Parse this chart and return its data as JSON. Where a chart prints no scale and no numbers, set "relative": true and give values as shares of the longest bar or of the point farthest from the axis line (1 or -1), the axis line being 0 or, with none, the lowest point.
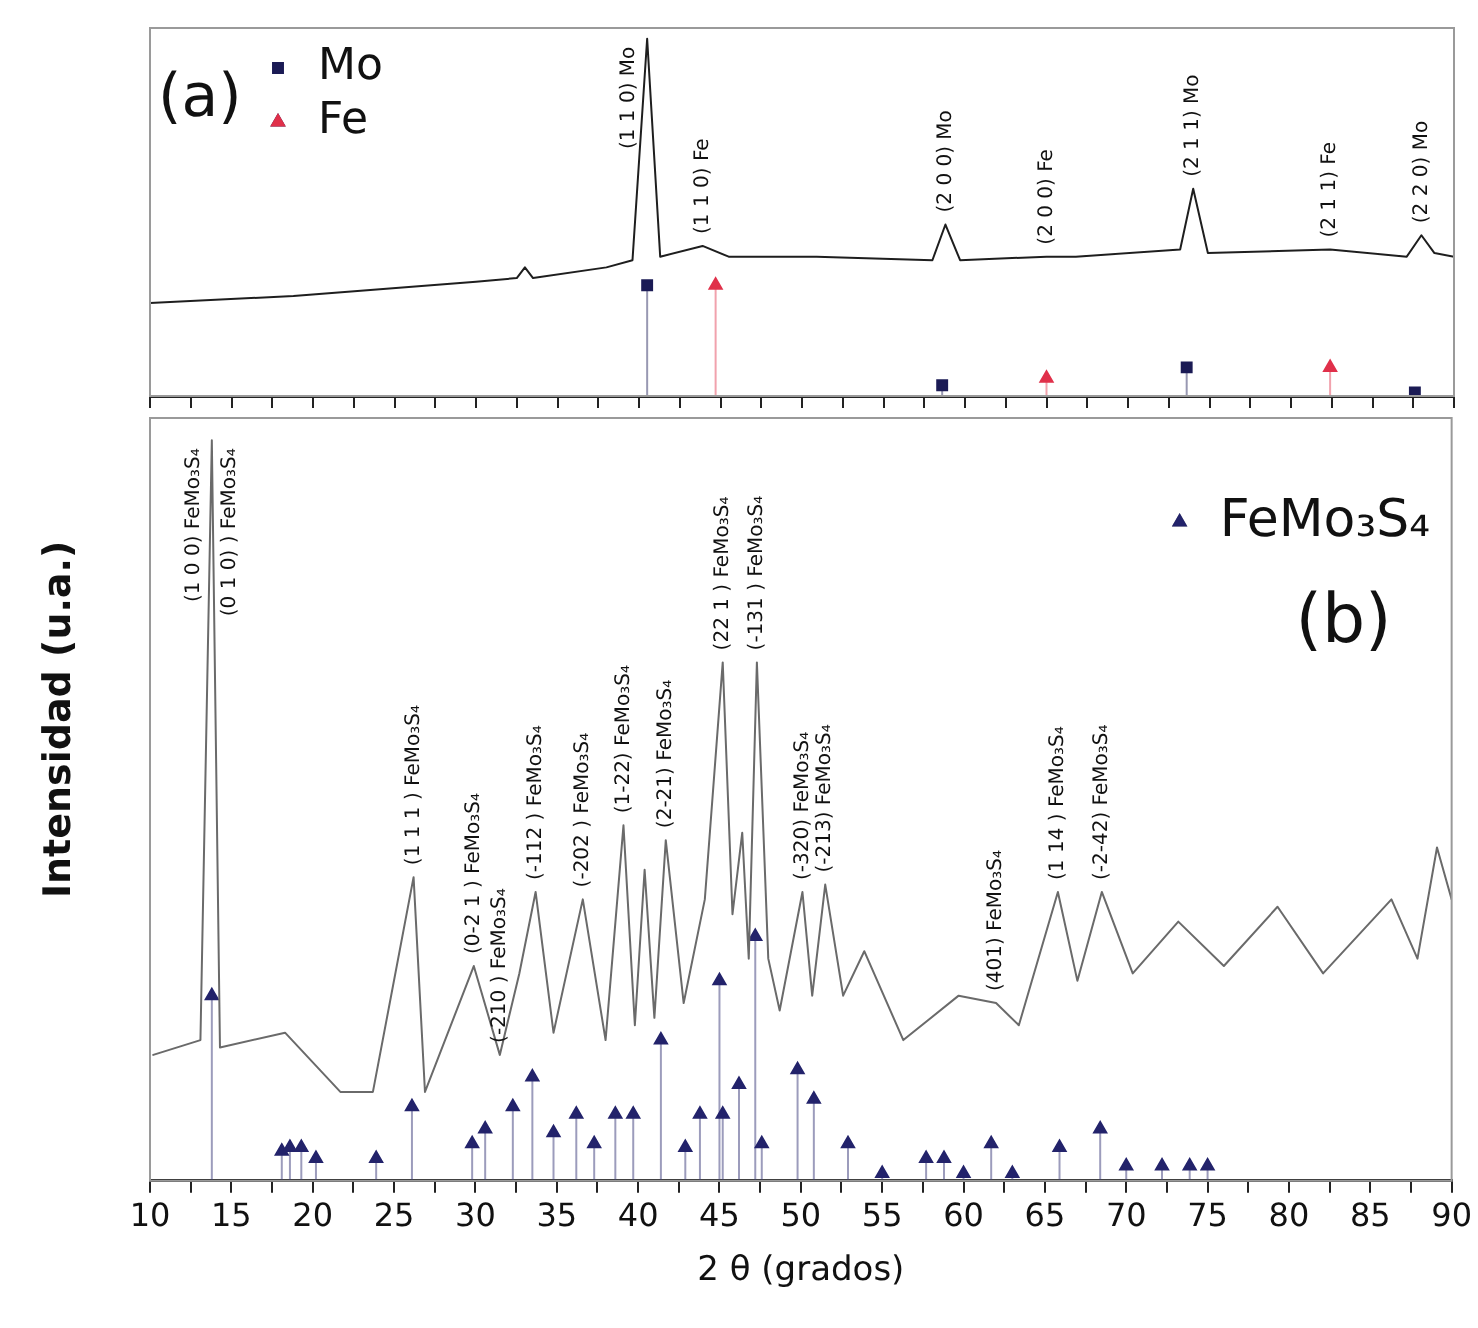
{
  "chart_data": [
    {
      "type": "line",
      "relative": true,
      "xlim": [
        10,
        90
      ],
      "tick_labels": false,
      "legend": "top left",
      "xticks": [
        {
          "value": 10,
          "label": null
        },
        {
          "value": 12.5,
          "label": null
        },
        {
          "value": 15,
          "label": null
        },
        {
          "value": 17.5,
          "label": null
        },
        {
          "value": 20,
          "label": null
        },
        {
          "value": 22.5,
          "label": null
        },
        {
          "value": 25,
          "label": null
        },
        {
          "value": 27.5,
          "label": null
        },
        {
          "value": 30,
          "label": null
        },
        {
          "value": 32.5,
          "label": null
        },
        {
          "value": 35,
          "label": null
        },
        {
          "value": 37.5,
          "label": null
        },
        {
          "value": 40,
          "label": null
        },
        {
          "value": 42.5,
          "label": null
        },
        {
          "value": 45,
          "label": null
        },
        {
          "value": 47.5,
          "label": null
        },
        {
          "value": 50,
          "label": null
        },
        {
          "value": 52.5,
          "label": null
        },
        {
          "value": 55,
          "label": null
        },
        {
          "value": 57.5,
          "label": null
        },
        {
          "value": 60,
          "label": null
        },
        {
          "value": 62.5,
          "label": null
        },
        {
          "value": 65,
          "label": null
        },
        {
          "value": 67.5,
          "label": null
        },
        {
          "value": 70,
          "label": null
        },
        {
          "value": 72.5,
          "label": null
        },
        {
          "value": 75,
          "label": null
        },
        {
          "value": 77.5,
          "label": null
        },
        {
          "value": 80,
          "label": null
        },
        {
          "value": 82.5,
          "label": null
        },
        {
          "value": 85,
          "label": null
        },
        {
          "value": 87.5,
          "label": null
        },
        {
          "value": 90,
          "label": null
        }
      ],
      "annotations": [
        "(a)",
        {
          "text": "(1 1 0) Mo",
          "x": 40.5,
          "y": 1
        },
        {
          "text": "(1 1 0) Fe",
          "x": 43.9,
          "y": 0.42
        },
        {
          "text": "(2 0 0) Mo",
          "x": 58.8,
          "y": 0.48
        },
        {
          "text": "(2 0 0) Fe",
          "x": 65,
          "y": 0.39
        },
        {
          "text": "(2 1 1) Mo",
          "x": 74,
          "y": 0.58
        },
        {
          "text": "(2 1 1) Fe",
          "x": 82.4,
          "y": 0.41
        },
        {
          "text": "(2 2 0) Mo",
          "x": 88,
          "y": 0.45
        }
      ],
      "series": [
        {
          "type": "line",
          "color": "#1e1e1e",
          "x": [
            10,
            18.8,
            30,
            32.5,
            33,
            33.5,
            38,
            39.6,
            40.5,
            41.3,
            43.9,
            45.5,
            50.9,
            58,
            58.8,
            59.7,
            65,
            66.8,
            73.2,
            74,
            74.9,
            82.4,
            87.1,
            88,
            88.8,
            90
          ],
          "values": [
            0.26,
            0.28,
            0.32,
            0.33,
            0.36,
            0.33,
            0.36,
            0.38,
            1,
            0.39,
            0.42,
            0.39,
            0.39,
            0.38,
            0.48,
            0.38,
            0.39,
            0.39,
            0.41,
            0.58,
            0.4,
            0.41,
            0.39,
            0.45,
            0.4,
            0.39
          ]
        },
        {
          "type": "lollipop",
          "name": "Mo",
          "color": "#1b1b55",
          "marker": "square",
          "x": [
            40.5,
            58.6,
            73.6,
            87.6
          ],
          "values": [
            0.31,
            0.03,
            0.08,
            0.01
          ]
        },
        {
          "type": "lollipop",
          "name": "Fe",
          "color": "#e0304a",
          "marker": "triangle",
          "x": [
            44.7,
            65,
            82.4
          ],
          "values": [
            0.31,
            0.05,
            0.08
          ]
        }
      ]
    },
    {
      "type": "line",
      "relative": true,
      "xlim": [
        10,
        90
      ],
      "tick_labels": "x",
      "legend": "top right",
      "xlabel": "2 θ (grados)",
      "ylabel": "Intensidad (u.a.)",
      "xticks": [
        10,
        {
          "value": 12.5,
          "label": null
        },
        15,
        {
          "value": 17.5,
          "label": null
        },
        20,
        {
          "value": 22.5,
          "label": null
        },
        25,
        {
          "value": 27.5,
          "label": null
        },
        30,
        {
          "value": 32.5,
          "label": null
        },
        35,
        {
          "value": 37.5,
          "label": null
        },
        40,
        {
          "value": 42.5,
          "label": null
        },
        45,
        {
          "value": 47.5,
          "label": null
        },
        50,
        {
          "value": 52.5,
          "label": null
        },
        55,
        {
          "value": 57.5,
          "label": null
        },
        60,
        {
          "value": 62.5,
          "label": null
        },
        65,
        {
          "value": 67.5,
          "label": null
        },
        70,
        {
          "value": 72.5,
          "label": null
        },
        75,
        {
          "value": 77.5,
          "label": null
        },
        80,
        {
          "value": 82.5,
          "label": null
        },
        85,
        {
          "value": 87.5,
          "label": null
        },
        90
      ],
      "annotations": [
        "(b)",
        {
          "text": "(1 0 0) FeMo₃S₄",
          "x": 13.8,
          "y": 1
        },
        {
          "text": "(0 1 0) ) FeMo₃S₄",
          "x": 13.8,
          "y": 1
        },
        {
          "text": "(1 1 1 ) FeMo₃S₄",
          "x": 26.2,
          "y": 0.41
        },
        {
          "text": "(0-2 1 ) FeMo₃S₄",
          "x": 29.9,
          "y": 0.29
        },
        {
          "text": "(-210 ) FeMo₃S₄",
          "x": 31.5,
          "y": 0.17
        },
        {
          "text": "(-112 ) FeMo₃S₄",
          "x": 33.7,
          "y": 0.39
        },
        {
          "text": "(-202 ) FeMo₃S₄",
          "x": 36.6,
          "y": 0.38
        },
        {
          "text": "(1-22) FeMo₃S₄",
          "x": 39.1,
          "y": 0.48
        },
        {
          "text": "(2-21) FeMo₃S₄",
          "x": 41.7,
          "y": 0.46
        },
        {
          "text": "(22 1 ) FeMo₃S₄",
          "x": 45.2,
          "y": 0.7
        },
        {
          "text": "(-131 ) FeMo₃S₄",
          "x": 47.3,
          "y": 0.7
        },
        {
          "text": "(-320) FeMo₃S₄",
          "x": 50.1,
          "y": 0.39
        },
        {
          "text": "(-213) FeMo₃S₄",
          "x": 51.5,
          "y": 0.4
        },
        {
          "text": "(401) FeMo₃S₄",
          "x": 62,
          "y": 0.24
        },
        {
          "text": "(1 14 ) FeMo₃S₄",
          "x": 65.8,
          "y": 0.39
        },
        {
          "text": "(-2-42) FeMo₃S₄",
          "x": 68.5,
          "y": 0.39
        }
      ],
      "series": [
        {
          "type": "line",
          "color": "#6a6a6a",
          "x": [
            10.2,
            13.1,
            13.8,
            14.3,
            18.3,
            21.7,
            23.7,
            26.2,
            26.9,
            29.9,
            31.5,
            32.7,
            33.7,
            34.8,
            36.6,
            38,
            39.1,
            39.8,
            40.4,
            41,
            41.7,
            42.8,
            44.1,
            45.2,
            45.8,
            46.4,
            46.8,
            47.3,
            48,
            48.7,
            50.1,
            50.7,
            51.5,
            52.6,
            53.9,
            56.3,
            59.7,
            62,
            63.4,
            65.8,
            67,
            68.5,
            70.4,
            73.2,
            76,
            79.3,
            82.1,
            86.3,
            87.9,
            89.1,
            90
          ],
          "values": [
            0.17,
            0.19,
            1,
            0.18,
            0.2,
            0.12,
            0.12,
            0.41,
            0.12,
            0.29,
            0.17,
            0.28,
            0.39,
            0.2,
            0.38,
            0.19,
            0.48,
            0.21,
            0.42,
            0.22,
            0.46,
            0.24,
            0.38,
            0.7,
            0.36,
            0.47,
            0.3,
            0.7,
            0.3,
            0.23,
            0.39,
            0.25,
            0.4,
            0.25,
            0.31,
            0.19,
            0.25,
            0.24,
            0.21,
            0.39,
            0.27,
            0.39,
            0.28,
            0.35,
            0.29,
            0.37,
            0.28,
            0.38,
            0.3,
            0.45,
            0.38
          ]
        },
        {
          "type": "lollipop",
          "name": "FeMo₃S₄",
          "color": "#23236b",
          "marker": "triangle",
          "x": [
            13.8,
            18.1,
            18.6,
            19.3,
            20.2,
            23.9,
            26.1,
            29.8,
            30.6,
            32.3,
            33.5,
            34.8,
            36.2,
            37.3,
            38.6,
            39.7,
            41.4,
            42.9,
            43.8,
            45,
            45.2,
            46.2,
            47.2,
            47.6,
            49.8,
            50.8,
            52.9,
            55,
            57.7,
            58.8,
            60,
            61.7,
            63,
            65.9,
            68.4,
            70,
            72.2,
            73.9,
            75
          ],
          "values": [
            0.25,
            0.04,
            0.045,
            0.045,
            0.03,
            0.03,
            0.1,
            0.05,
            0.07,
            0.1,
            0.14,
            0.065,
            0.09,
            0.05,
            0.09,
            0.09,
            0.19,
            0.045,
            0.09,
            0.27,
            0.09,
            0.13,
            0.33,
            0.05,
            0.15,
            0.11,
            0.05,
            0.01,
            0.03,
            0.03,
            0.01,
            0.05,
            0.01,
            0.045,
            0.07,
            0.02,
            0.02,
            0.02,
            0.02
          ]
        }
      ]
    }
  ]
}
